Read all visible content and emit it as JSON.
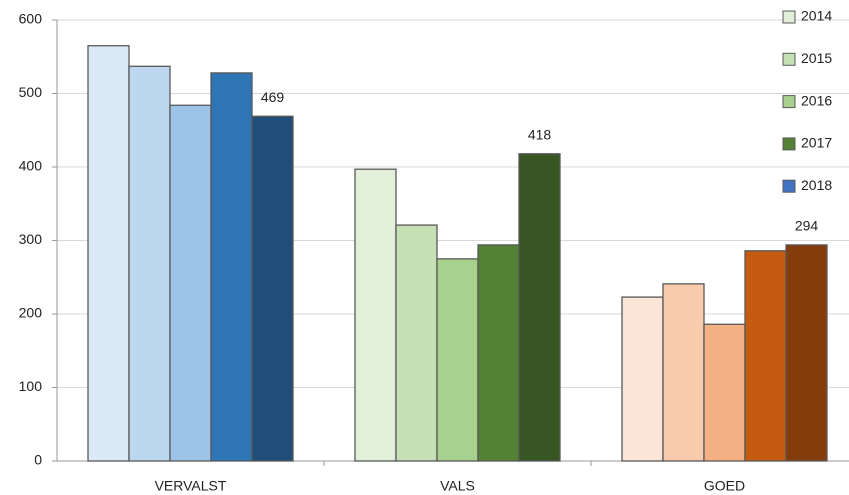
{
  "chart_data": {
    "type": "bar",
    "categories": [
      "VERVALST",
      "VALS",
      "GOED"
    ],
    "series": [
      {
        "name": "2014",
        "color": "#e2efda",
        "colors": [
          "#dce9f6",
          "#e2efda",
          "#fbe5d6"
        ],
        "values": [
          565,
          397,
          223
        ]
      },
      {
        "name": "2015",
        "color": "#c5e0b4",
        "colors": [
          "#bdd7ee",
          "#c5e0b4",
          "#f8cbad"
        ],
        "values": [
          537,
          321,
          241
        ]
      },
      {
        "name": "2016",
        "color": "#a9d18e",
        "colors": [
          "#9dc3e6",
          "#a9d18e",
          "#f4b183"
        ],
        "values": [
          484,
          275,
          186
        ]
      },
      {
        "name": "2017",
        "color": "#548235",
        "colors": [
          "#2e75b6",
          "#548235",
          "#c55a11"
        ],
        "values": [
          528,
          294,
          286
        ]
      },
      {
        "name": "2018",
        "color": "#4472c4",
        "colors": [
          "#1f4e79",
          "#375623",
          "#843c0c"
        ],
        "values": [
          469,
          418,
          294
        ],
        "data_labels": true
      }
    ],
    "ylim": [
      0,
      600
    ],
    "yticks": [
      0,
      100,
      200,
      300,
      400,
      500,
      600
    ],
    "grid": true,
    "legend": "right"
  }
}
